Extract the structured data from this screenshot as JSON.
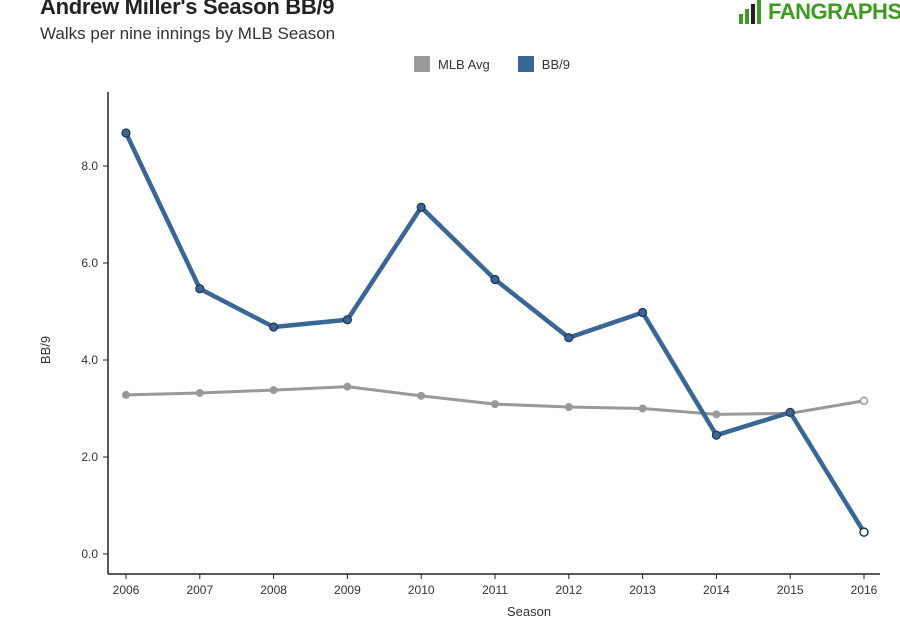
{
  "header": {
    "title": "Andrew Miller's Season BB/9",
    "subtitle": "Walks per nine innings by MLB Season",
    "brand": "FANGRAPHS"
  },
  "colors": {
    "mlb_avg": "#999999",
    "bb9": "#3a6696",
    "brand": "#3e9b22"
  },
  "chart_data": {
    "type": "line",
    "title": "Andrew Miller's Season BB/9",
    "subtitle": "Walks per nine innings by MLB Season",
    "xlabel": "Season",
    "ylabel": "BB/9",
    "categories": [
      "2006",
      "2007",
      "2008",
      "2009",
      "2010",
      "2011",
      "2012",
      "2013",
      "2014",
      "2015",
      "2016"
    ],
    "ylim": [
      0,
      9.2
    ],
    "yticks": [
      0,
      2,
      4,
      6,
      8
    ],
    "ytick_labels": [
      "0.0",
      "2.0",
      "4.0",
      "6.0",
      "8.0"
    ],
    "legend_position": "top-center",
    "series": [
      {
        "name": "MLB Avg",
        "color": "#999999",
        "values": [
          3.28,
          3.32,
          3.38,
          3.45,
          3.26,
          3.09,
          3.03,
          3.0,
          2.88,
          2.9,
          3.16
        ]
      },
      {
        "name": "BB/9",
        "color": "#3a6696",
        "values": [
          8.68,
          5.47,
          4.68,
          4.83,
          7.15,
          5.66,
          4.46,
          4.98,
          2.45,
          2.92,
          0.45
        ]
      }
    ]
  }
}
